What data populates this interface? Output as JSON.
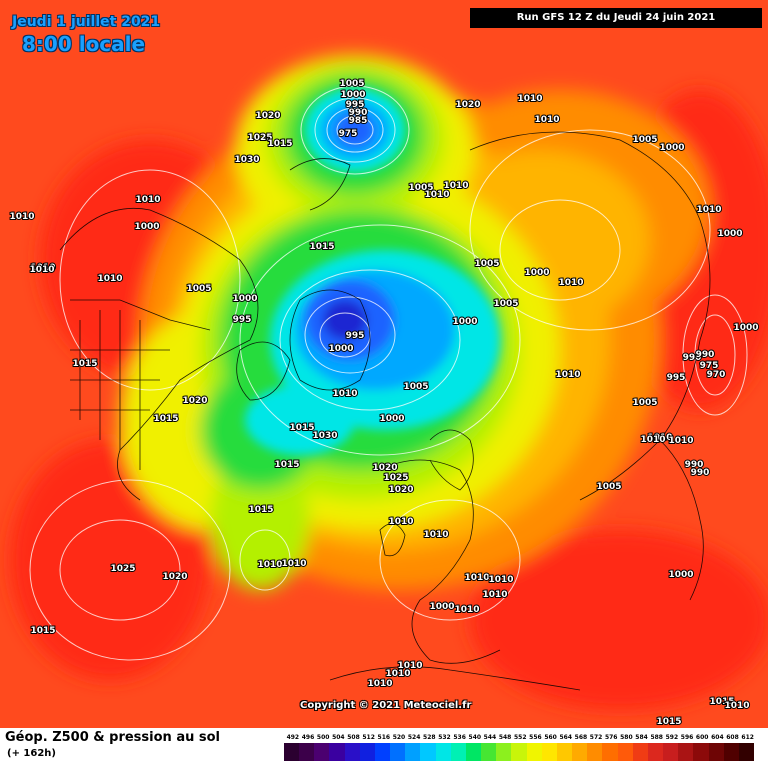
{
  "header": {
    "date_text": "Jeudi 1 juillet 2021",
    "time_text": "8:00 locale",
    "run_text": "Run GFS 12 Z du Jeudi 24 juin 2021"
  },
  "copyright": "Copyright © 2021 Meteociel.fr",
  "footer": {
    "title": "Géop. Z500 & pression au sol",
    "subtitle": "(+ 162h)"
  },
  "legend": {
    "ticks": [
      "492",
      "496",
      "500",
      "504",
      "508",
      "512",
      "516",
      "520",
      "524",
      "528",
      "532",
      "536",
      "540",
      "544",
      "548",
      "552",
      "556",
      "560",
      "564",
      "568",
      "572",
      "576",
      "580",
      "584",
      "588",
      "592",
      "596",
      "600",
      "604",
      "608",
      "612"
    ],
    "colors": [
      "#2b0030",
      "#3c004a",
      "#4b0070",
      "#3a00a0",
      "#2a10c8",
      "#1020e0",
      "#0040ff",
      "#0070ff",
      "#00a0ff",
      "#00c8ff",
      "#00e6e6",
      "#00f0b4",
      "#00e664",
      "#46e632",
      "#8cf01e",
      "#c8f50a",
      "#f0f500",
      "#ffe600",
      "#ffc800",
      "#ffaa00",
      "#ff8c00",
      "#ff6e00",
      "#ff5a0a",
      "#f03c14",
      "#dc281e",
      "#c81e1e",
      "#aa1414",
      "#8c0a0a",
      "#6e0505",
      "#500000",
      "#320000"
    ]
  },
  "map_colors": {
    "background": "#ff4a1e",
    "warm": "#ff2a14",
    "orange": "#ff8c00",
    "amber": "#ffb400",
    "yellow": "#f0f000",
    "lime": "#b4f000",
    "green": "#28dc3c",
    "cyan": "#00e6e6",
    "sky": "#00a8ff",
    "blue": "#1e64ff",
    "deep": "#1e28d2"
  },
  "pressure_labels": [
    "1005",
    "1000",
    "995",
    "990",
    "985",
    "975",
    "1020",
    "1025",
    "1015",
    "1030",
    "1020",
    "1010",
    "1010",
    "1005",
    "1000",
    "1005",
    "1010",
    "1010",
    "1010",
    "1000",
    "1010",
    "1000",
    "1015",
    "1005",
    "1000",
    "1000",
    "995",
    "995",
    "1000",
    "1005",
    "1010",
    "1000",
    "1010",
    "1005",
    "990",
    "1000",
    "995",
    "990",
    "975",
    "970",
    "1015",
    "1020",
    "1015",
    "1010",
    "1010",
    "1005",
    "1010",
    "1000",
    "1005",
    "1015",
    "1010",
    "1010",
    "1030",
    "1020",
    "1015",
    "1025",
    "1015",
    "1020",
    "1010",
    "1010",
    "1025",
    "1020",
    "1010",
    "1010",
    "1000",
    "1005",
    "1010",
    "1010",
    "990",
    "990",
    "1010",
    "1000",
    "1010",
    "1010",
    "1010",
    "1010",
    "1015",
    "1015",
    "1015",
    "1010",
    "1010",
    "1010",
    "1010"
  ]
}
